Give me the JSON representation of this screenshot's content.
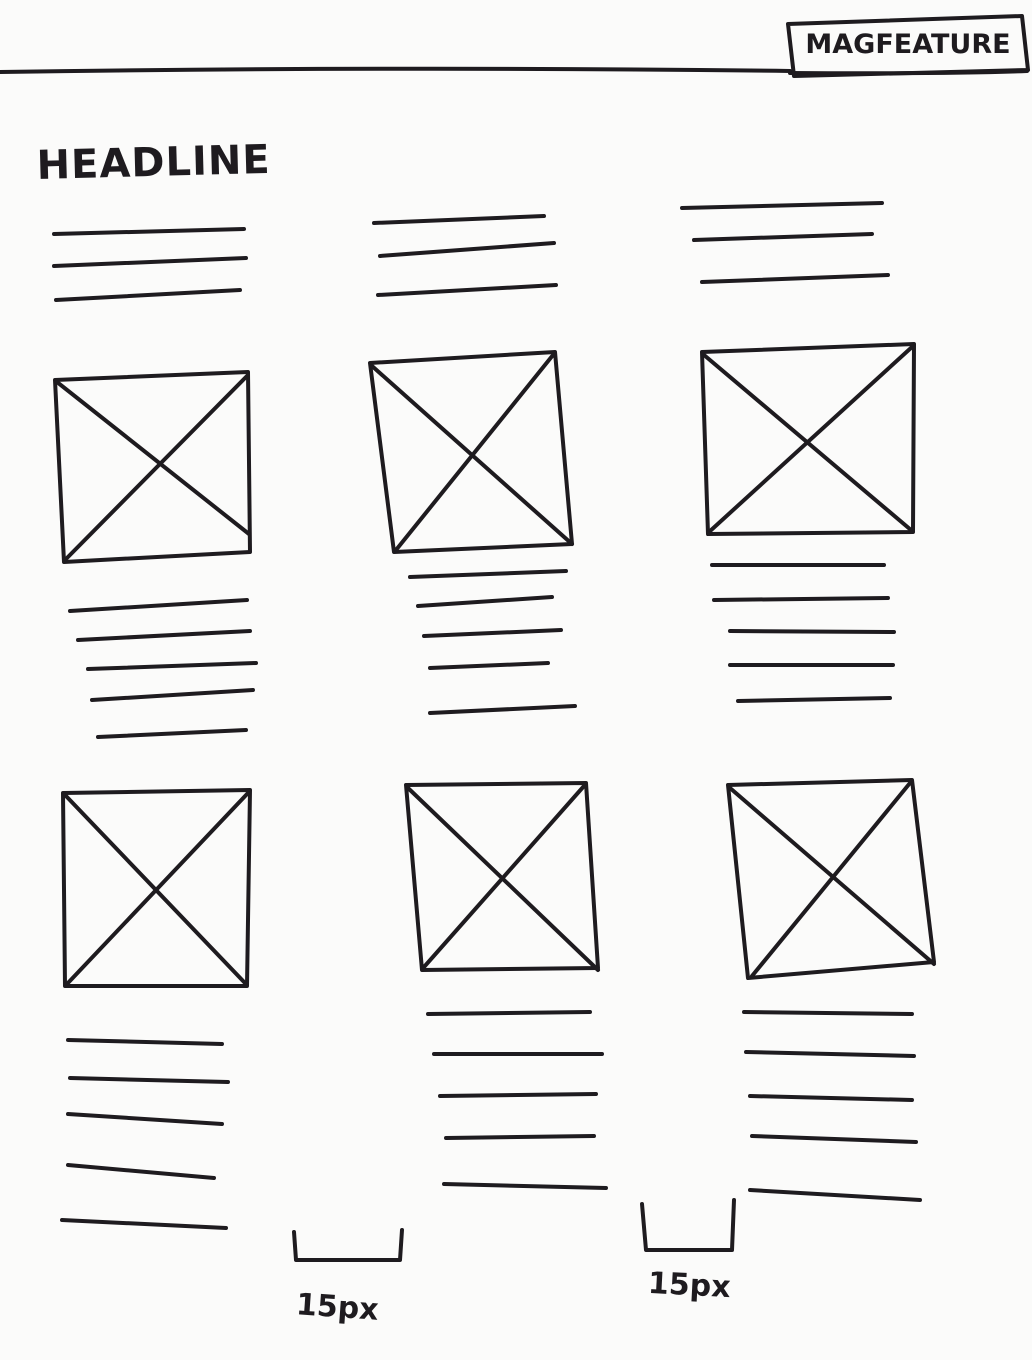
{
  "page_label": "MAGFEATURE",
  "headline": "HEADLINE",
  "spacing_annotations": [
    "15px",
    "15px"
  ],
  "colors": {
    "ink": "#1e1b1f",
    "paper": "#fbfbfa"
  },
  "icons": {
    "image_placeholder": "image-placeholder-icon",
    "spacing_bracket": "bracket-icon"
  }
}
